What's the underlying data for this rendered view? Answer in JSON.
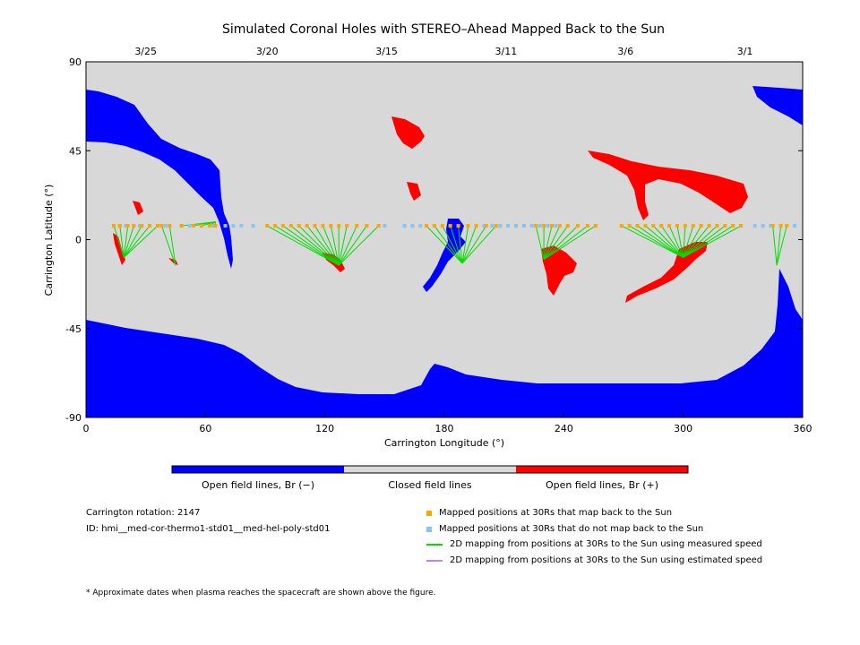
{
  "title": "Simulated Coronal Holes with STEREO–Ahead Mapped Back to the Sun",
  "colors": {
    "open_negative": "#0000ff",
    "closed": "#d8d8d8",
    "open_positive": "#ff0000",
    "maps_back": "#ffa500",
    "no_map_back": "#87c3f5",
    "measured_speed": "#00dd00",
    "estimated_speed": "#bb88ee"
  },
  "chart_data": {
    "type": "map",
    "title": "Simulated Coronal Holes with STEREO–Ahead Mapped Back to the Sun",
    "xlabel": "Carrington Longitude (°)",
    "ylabel": "Carrington Latitude (°)",
    "xlim": [
      0,
      360
    ],
    "ylim": [
      -90,
      90
    ],
    "xticks": [
      0,
      60,
      120,
      180,
      240,
      300,
      360
    ],
    "yticks": [
      90,
      45,
      0,
      -45,
      -90
    ],
    "top_axis_dates": [
      {
        "label": "3/25",
        "lon": 30
      },
      {
        "label": "3/20",
        "lon": 91
      },
      {
        "label": "3/15",
        "lon": 151
      },
      {
        "label": "3/11",
        "lon": 211
      },
      {
        "label": "3/6",
        "lon": 271
      },
      {
        "label": "3/1",
        "lon": 331
      }
    ],
    "colorbar": [
      "Open field lines, Br (−)",
      "Closed field lines",
      "Open field lines, Br (+)"
    ],
    "spacecraft_lat": 7,
    "no_map_back_lon": [
      14,
      17,
      20,
      24,
      27,
      32,
      36,
      40,
      48,
      52,
      64,
      70,
      74,
      78,
      84,
      150,
      160,
      164,
      168,
      200,
      204,
      208,
      212,
      216,
      220,
      224,
      228,
      232,
      236,
      336,
      340,
      344,
      356
    ],
    "fan_groups": [
      {
        "foot": [
          19,
          -9
        ],
        "lons": [
          14,
          17,
          21,
          24,
          28,
          32,
          36
        ]
      },
      {
        "foot": [
          45,
          -13
        ],
        "lons": [
          38,
          42
        ]
      },
      {
        "foot": [
          65,
          9
        ],
        "lons": [
          48,
          54,
          58,
          62,
          65
        ]
      },
      {
        "foot": [
          127,
          -13
        ],
        "lons": [
          91,
          95,
          99,
          103,
          107,
          111,
          115,
          119,
          123,
          127,
          131,
          136,
          141,
          147
        ]
      },
      {
        "foot": [
          189,
          -12
        ],
        "lons": [
          171,
          175,
          179,
          183,
          187,
          192,
          196,
          201,
          206
        ]
      },
      {
        "foot": [
          230,
          -10
        ],
        "lons": [
          226,
          230,
          234,
          238,
          242,
          247,
          252,
          256
        ]
      },
      {
        "foot": [
          300,
          -9
        ],
        "lons": [
          269,
          273,
          277,
          281,
          285,
          289,
          293,
          297,
          301,
          305,
          309,
          313,
          317,
          321,
          325,
          329
        ]
      },
      {
        "foot": [
          347,
          -13
        ],
        "lons": [
          345,
          349,
          352
        ]
      }
    ]
  },
  "info": {
    "rotation": "Carrington rotation: 2147",
    "id": "ID: hmi__med-cor-thermo1-std01__med-hel-poly-std01"
  },
  "legend": {
    "maps_back": "Mapped positions at 30Rs that map back to the Sun",
    "no_map_back": "Mapped positions at 30Rs that do not map back to the Sun",
    "measured": "2D mapping from positions at 30Rs to the Sun using measured speed",
    "estimated": "2D mapping from positions at 30Rs to the Sun using estimated speed"
  },
  "footnote": "* Approximate dates when plasma reaches the spacecraft are shown above the figure."
}
